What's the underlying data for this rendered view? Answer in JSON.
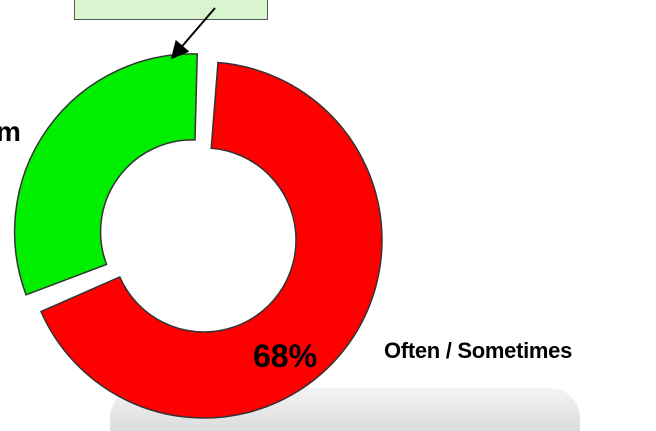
{
  "chart_data": {
    "type": "pie",
    "variant": "donut",
    "slices": [
      {
        "name": "Often / Sometimes",
        "value": 68,
        "label": "68%",
        "color": "#ff0000"
      },
      {
        "name": "",
        "value": 32,
        "label": "",
        "color": "#00ee00"
      }
    ],
    "cut_off_label": "m",
    "legend": "none",
    "grid": false
  }
}
